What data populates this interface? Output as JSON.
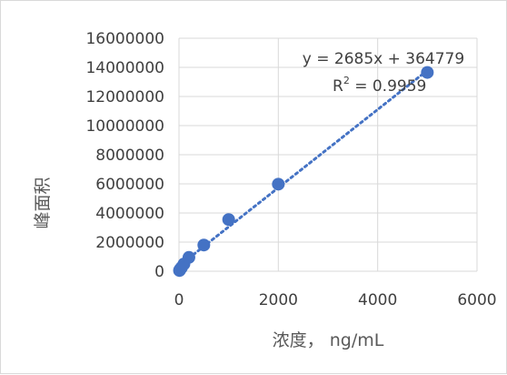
{
  "chart_data": {
    "type": "scatter",
    "title": "",
    "xlabel": "浓度， ng/mL",
    "ylabel": "峰面积",
    "xlim": [
      0,
      6000
    ],
    "ylim": [
      0,
      16000000
    ],
    "x_ticks": [
      0,
      2000,
      4000,
      6000
    ],
    "y_ticks": [
      0,
      2000000,
      4000000,
      6000000,
      8000000,
      10000000,
      12000000,
      14000000,
      16000000
    ],
    "x_tick_labels": [
      "0",
      "2000",
      "4000",
      "6000"
    ],
    "y_tick_labels": [
      "0",
      "2000000",
      "4000000",
      "6000000",
      "8000000",
      "10000000",
      "12000000",
      "14000000",
      "16000000"
    ],
    "grid": "both",
    "legend": "none",
    "series": [
      {
        "x": [
          10,
          20,
          50,
          100,
          200,
          500,
          1000,
          2000,
          5000
        ],
        "y": [
          50000,
          120000,
          250000,
          500000,
          950000,
          1800000,
          3550000,
          5980000,
          13650000
        ]
      }
    ],
    "trendline": {
      "type": "linear",
      "slope": 2685,
      "intercept": 364779,
      "equation": "y = 2685x + 364779",
      "r2_label": "R",
      "r2_sup": "2",
      "r2_value": " = 0.9959"
    },
    "colors": {
      "marker": "#4472c4",
      "trendline": "#4472c4",
      "grid": "#d9d9d9"
    }
  }
}
